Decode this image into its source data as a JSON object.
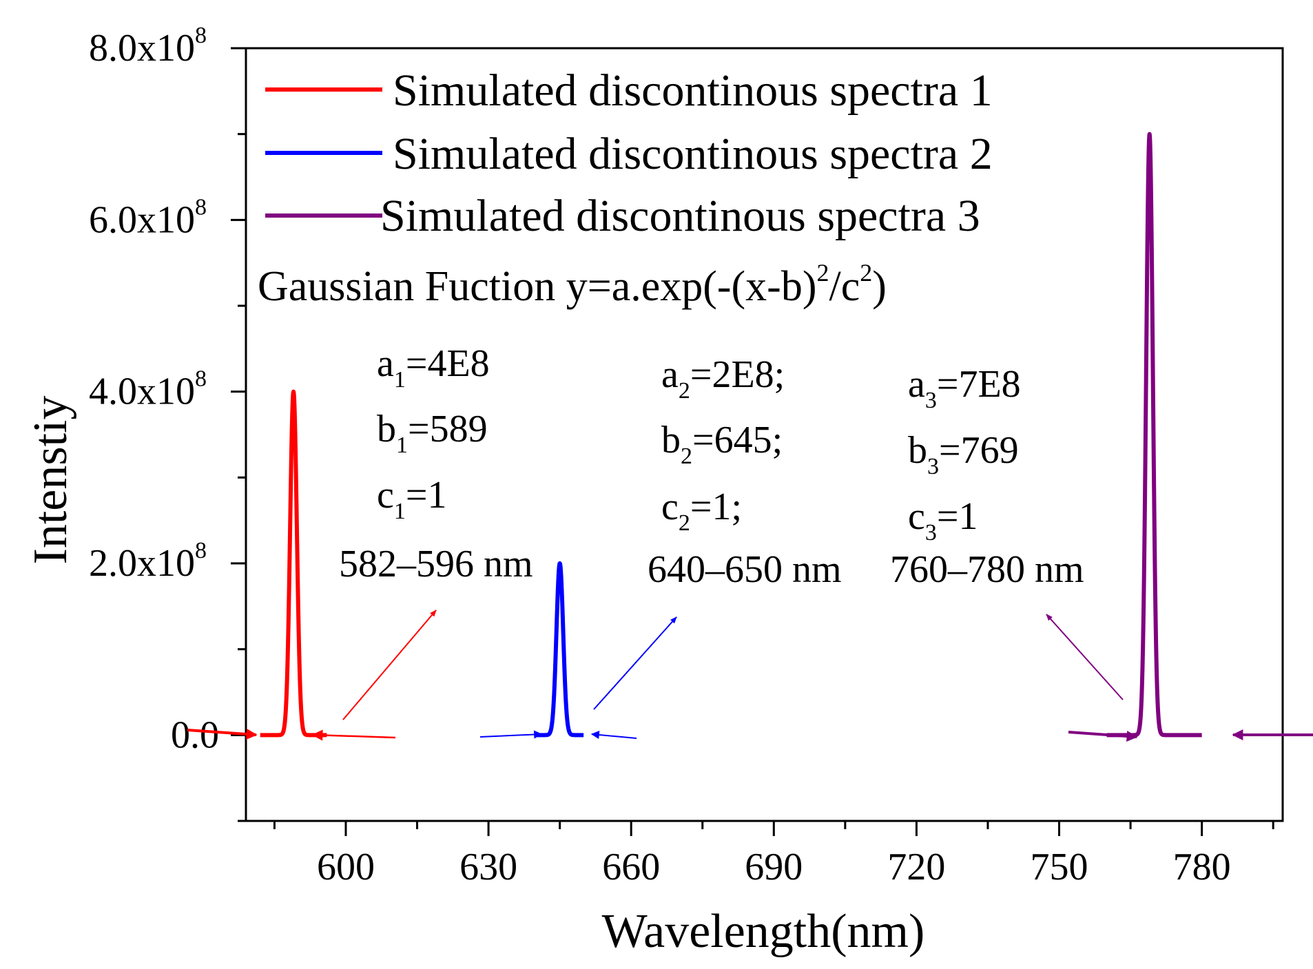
{
  "chart_data": {
    "type": "line",
    "xlabel": "Wavelength(nm)",
    "ylabel": "Intenstiy",
    "xlim": [
      579,
      797
    ],
    "ylim": [
      -100000000.0,
      800000000.0
    ],
    "x_ticks": [
      {
        "value": 600,
        "label": "600"
      },
      {
        "value": 630,
        "label": "630"
      },
      {
        "value": 660,
        "label": "660"
      },
      {
        "value": 690,
        "label": "690"
      },
      {
        "value": 720,
        "label": "720"
      },
      {
        "value": 750,
        "label": "750"
      },
      {
        "value": 780,
        "label": "780"
      }
    ],
    "x_minor_ticks": [
      585,
      615,
      645,
      675,
      705,
      735,
      765,
      795
    ],
    "y_ticks": [
      {
        "value": 0,
        "label": "0.0",
        "sup": ""
      },
      {
        "value": 200000000.0,
        "label": "2.0x10",
        "sup": "8"
      },
      {
        "value": 400000000.0,
        "label": "4.0x10",
        "sup": "8"
      },
      {
        "value": 600000000.0,
        "label": "6.0x10",
        "sup": "8"
      },
      {
        "value": 800000000.0,
        "label": "8.0x10",
        "sup": "8"
      }
    ],
    "y_minor_ticks": [
      -100000000.0,
      100000000.0,
      300000000.0,
      500000000.0,
      700000000.0
    ],
    "series": [
      {
        "name": "Simulated discontinous spectra 1",
        "color": "#ff0000",
        "a": 400000000.0,
        "b": 589,
        "c": 1,
        "range": [
          582,
          596
        ]
      },
      {
        "name": "Simulated discontinous spectra 2",
        "color": "#0000ff",
        "a": 200000000.0,
        "b": 645,
        "c": 1,
        "range": [
          640,
          650
        ]
      },
      {
        "name": "Simulated discontinous spectra 3",
        "color": "#800080",
        "a": 700000000.0,
        "b": 769,
        "c": 1,
        "range": [
          760,
          780
        ]
      }
    ],
    "annotations": {
      "formula": {
        "prefix": "Gaussian Fuction y=a.exp(-(x-b)",
        "sup1": "2",
        "mid": "/c",
        "sup2": "2",
        "suffix": ")"
      },
      "params": [
        {
          "a_label": "a",
          "a_sub": "1",
          "a_text": "=4E8",
          "b_label": "b",
          "b_sub": "1",
          "b_text": "=589",
          "c_label": "c",
          "c_sub": "1",
          "c_text": "=1",
          "range_text": "582–596 nm"
        },
        {
          "a_label": "a",
          "a_sub": "2",
          "a_text": "=2E8;",
          "b_label": "b",
          "b_sub": "2",
          "b_text": "=645;",
          "c_label": "c",
          "c_sub": "2",
          "c_text": "=1;",
          "range_text": "640–650 nm"
        },
        {
          "a_label": "a",
          "a_sub": "3",
          "a_text": "=7E8",
          "b_label": "b",
          "b_sub": "3",
          "b_text": "=769",
          "c_label": "c",
          "c_sub": "3",
          "c_text": "=1",
          "range_text": "760–780 nm"
        }
      ]
    }
  }
}
